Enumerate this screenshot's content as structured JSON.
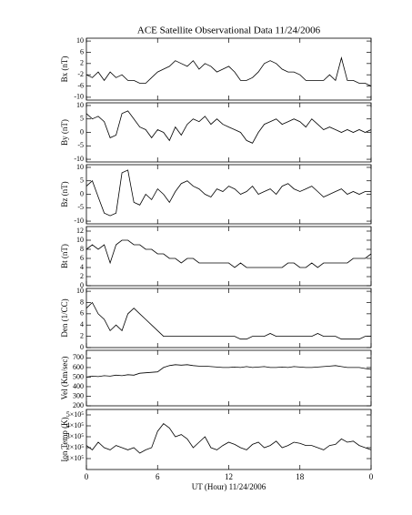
{
  "chart_data": [
    {
      "type": "line",
      "title": "ACE Satellite Observational Data   11/24/2006",
      "ylabel": "Bx (nT)",
      "color": "#000000",
      "x": [
        0,
        0.5,
        1,
        1.5,
        2,
        2.5,
        3,
        3.5,
        4,
        4.5,
        5,
        5.5,
        6,
        6.5,
        7,
        7.5,
        8,
        8.5,
        9,
        9.5,
        10,
        10.5,
        11,
        11.5,
        12,
        12.5,
        13,
        13.5,
        14,
        14.5,
        15,
        15.5,
        16,
        16.5,
        17,
        17.5,
        18,
        18.5,
        19,
        19.5,
        20,
        20.5,
        21,
        21.5,
        22,
        22.5,
        23,
        23.5,
        24
      ],
      "values": [
        -2,
        -3,
        -1,
        -4,
        -1,
        -3,
        -2,
        -4,
        -4,
        -5,
        -5,
        -3,
        -1,
        0,
        1,
        3,
        2,
        1,
        3,
        0,
        2,
        1,
        -1,
        0,
        1,
        -1,
        -4,
        -4,
        -3,
        -1,
        2,
        3,
        2,
        0,
        -1,
        -1,
        -2,
        -4,
        -4,
        -4,
        -4,
        -2,
        -4,
        4,
        -4,
        -4,
        -5,
        -5,
        -6
      ],
      "ylim": [
        -11,
        11
      ],
      "yticks": [
        10,
        6,
        2,
        -2,
        -6,
        -10
      ]
    },
    {
      "type": "line",
      "ylabel": "By (nT)",
      "color": "#000000",
      "x": [
        0,
        0.5,
        1,
        1.5,
        2,
        2.5,
        3,
        3.5,
        4,
        4.5,
        5,
        5.5,
        6,
        6.5,
        7,
        7.5,
        8,
        8.5,
        9,
        9.5,
        10,
        10.5,
        11,
        11.5,
        12,
        12.5,
        13,
        13.5,
        14,
        14.5,
        15,
        15.5,
        16,
        16.5,
        17,
        17.5,
        18,
        18.5,
        19,
        19.5,
        20,
        20.5,
        21,
        21.5,
        22,
        22.5,
        23,
        23.5,
        24
      ],
      "values": [
        7,
        5,
        6,
        4,
        -2,
        -1,
        7,
        8,
        5,
        2,
        1,
        -2,
        1,
        0,
        -3,
        2,
        -1,
        3,
        5,
        4,
        6,
        3,
        5,
        3,
        2,
        1,
        0,
        -3,
        -4,
        0,
        3,
        4,
        5,
        3,
        4,
        5,
        4,
        2,
        5,
        3,
        1,
        2,
        1,
        0,
        1,
        0,
        1,
        0,
        1
      ],
      "ylim": [
        -11,
        11
      ],
      "yticks": [
        10,
        5,
        0,
        -5,
        -10
      ]
    },
    {
      "type": "line",
      "ylabel": "Bz (nT)",
      "color": "#000000",
      "x": [
        0,
        0.5,
        1,
        1.5,
        2,
        2.5,
        3,
        3.5,
        4,
        4.5,
        5,
        5.5,
        6,
        6.5,
        7,
        7.5,
        8,
        8.5,
        9,
        9.5,
        10,
        10.5,
        11,
        11.5,
        12,
        12.5,
        13,
        13.5,
        14,
        14.5,
        15,
        15.5,
        16,
        16.5,
        17,
        17.5,
        18,
        18.5,
        19,
        19.5,
        20,
        20.5,
        21,
        21.5,
        22,
        22.5,
        23,
        23.5,
        24
      ],
      "values": [
        3,
        5,
        -1,
        -7,
        -8,
        -7,
        8,
        9,
        -3,
        -4,
        0,
        -2,
        2,
        0,
        -3,
        1,
        4,
        5,
        3,
        2,
        0,
        -1,
        2,
        1,
        3,
        2,
        0,
        1,
        3,
        0,
        1,
        2,
        0,
        3,
        4,
        2,
        1,
        2,
        3,
        1,
        -1,
        0,
        1,
        2,
        0,
        1,
        0,
        1,
        1
      ],
      "ylim": [
        -11,
        11
      ],
      "yticks": [
        10,
        5,
        0,
        -5,
        -10
      ]
    },
    {
      "type": "line",
      "ylabel": "Bt (nT)",
      "color": "#000000",
      "x": [
        0,
        0.5,
        1,
        1.5,
        2,
        2.5,
        3,
        3.5,
        4,
        4.5,
        5,
        5.5,
        6,
        6.5,
        7,
        7.5,
        8,
        8.5,
        9,
        9.5,
        10,
        10.5,
        11,
        11.5,
        12,
        12.5,
        13,
        13.5,
        14,
        14.5,
        15,
        15.5,
        16,
        16.5,
        17,
        17.5,
        18,
        18.5,
        19,
        19.5,
        20,
        20.5,
        21,
        21.5,
        22,
        22.5,
        23,
        23.5,
        24
      ],
      "values": [
        8,
        9,
        8,
        9,
        5,
        9,
        10,
        10,
        9,
        9,
        8,
        8,
        7,
        7,
        6,
        6,
        5,
        6,
        6,
        5,
        5,
        5,
        5,
        5,
        5,
        4,
        5,
        4,
        4,
        4,
        4,
        4,
        4,
        4,
        5,
        5,
        4,
        4,
        5,
        4,
        5,
        5,
        5,
        5,
        5,
        6,
        6,
        6,
        7
      ],
      "ylim": [
        0,
        13
      ],
      "yticks": [
        12,
        10,
        8,
        6,
        4,
        2,
        0
      ]
    },
    {
      "type": "line",
      "ylabel": "Den (1/CC)",
      "color": "#000000",
      "x": [
        0,
        0.5,
        1,
        1.5,
        2,
        2.5,
        3,
        3.5,
        4,
        4.5,
        5,
        5.5,
        6,
        6.5,
        7,
        7.5,
        8,
        8.5,
        9,
        9.5,
        10,
        10.5,
        11,
        11.5,
        12,
        12.5,
        13,
        13.5,
        14,
        14.5,
        15,
        15.5,
        16,
        16.5,
        17,
        17.5,
        18,
        18.5,
        19,
        19.5,
        20,
        20.5,
        21,
        21.5,
        22,
        22.5,
        23,
        23.5,
        24
      ],
      "values": [
        7,
        8,
        6,
        5,
        3,
        4,
        3,
        6,
        7,
        6,
        5,
        4,
        3,
        2,
        2,
        2,
        2,
        2,
        2,
        2,
        2,
        2,
        2,
        2,
        2,
        2,
        1.5,
        1.5,
        2,
        2,
        2,
        2.5,
        2,
        2,
        2,
        2,
        2,
        2,
        2,
        2.5,
        2,
        2,
        2,
        1.5,
        1.5,
        1.5,
        1.5,
        2,
        2
      ],
      "ylim": [
        0,
        10.5
      ],
      "yticks": [
        10,
        8,
        6,
        4,
        2,
        0
      ]
    },
    {
      "type": "line",
      "ylabel": "Vel (Km/sec)",
      "color": "#000000",
      "x": [
        0,
        0.5,
        1,
        1.5,
        2,
        2.5,
        3,
        3.5,
        4,
        4.5,
        5,
        5.5,
        6,
        6.5,
        7,
        7.5,
        8,
        8.5,
        9,
        9.5,
        10,
        10.5,
        11,
        11.5,
        12,
        12.5,
        13,
        13.5,
        14,
        14.5,
        15,
        15.5,
        16,
        16.5,
        17,
        17.5,
        18,
        18.5,
        19,
        19.5,
        20,
        20.5,
        21,
        21.5,
        22,
        22.5,
        23,
        23.5,
        24
      ],
      "values": [
        500,
        510,
        505,
        515,
        510,
        520,
        515,
        525,
        520,
        540,
        545,
        550,
        555,
        600,
        620,
        630,
        625,
        630,
        620,
        615,
        615,
        610,
        605,
        600,
        600,
        605,
        600,
        610,
        600,
        605,
        610,
        600,
        600,
        605,
        600,
        610,
        605,
        600,
        600,
        605,
        610,
        615,
        620,
        610,
        600,
        600,
        600,
        590,
        580
      ],
      "ylim": [
        200,
        780
      ],
      "yticks": [
        700,
        600,
        500,
        400,
        300,
        200
      ]
    },
    {
      "type": "line",
      "ylabel": "Ion Temp (K)",
      "color": "#000000",
      "xlabel": "UT (Hour)  11/24/2006",
      "x": [
        0,
        0.5,
        1,
        1.5,
        2,
        2.5,
        3,
        3.5,
        4,
        4.5,
        5,
        5.5,
        6,
        6.5,
        7,
        7.5,
        8,
        8.5,
        9,
        9.5,
        10,
        10.5,
        11,
        11.5,
        12,
        12.5,
        13,
        13.5,
        14,
        14.5,
        15,
        15.5,
        16,
        16.5,
        17,
        17.5,
        18,
        18.5,
        19,
        19.5,
        20,
        20.5,
        21,
        21.5,
        22,
        22.5,
        23,
        23.5,
        24
      ],
      "values": [
        220000,
        180000,
        250000,
        200000,
        180000,
        220000,
        200000,
        180000,
        200000,
        150000,
        180000,
        200000,
        350000,
        420000,
        380000,
        300000,
        320000,
        280000,
        200000,
        250000,
        300000,
        200000,
        180000,
        220000,
        250000,
        230000,
        200000,
        180000,
        230000,
        250000,
        200000,
        220000,
        260000,
        200000,
        220000,
        250000,
        240000,
        220000,
        220000,
        200000,
        180000,
        220000,
        230000,
        280000,
        250000,
        260000,
        220000,
        200000,
        180000
      ],
      "ylim": [
        0,
        550000
      ],
      "yticks": [
        {
          "value": 500000,
          "label": "5×10⁵"
        },
        {
          "value": 400000,
          "label": "4×10⁵"
        },
        {
          "value": 300000,
          "label": "3×10⁵"
        },
        {
          "value": 200000,
          "label": "2×10⁵"
        },
        {
          "value": 100000,
          "label": "1×10⁵"
        }
      ],
      "xlim": [
        0,
        24
      ],
      "xticks": [
        0,
        6,
        12,
        18,
        {
          "value": 24,
          "label": "0"
        }
      ]
    }
  ]
}
